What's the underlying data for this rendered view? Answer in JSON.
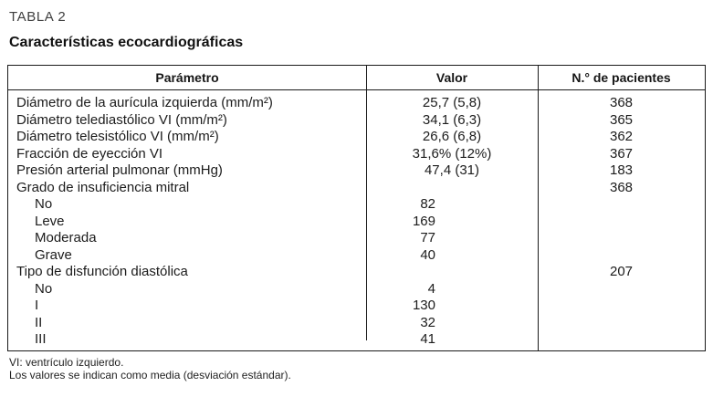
{
  "page": {
    "kicker": "TABLA 2",
    "title": "Características ecocardiográficas"
  },
  "table": {
    "headers": {
      "parametro": "Parámetro",
      "valor": "Valor",
      "pacientes": "N.° de pacientes"
    },
    "rows": [
      {
        "param": "Diámetro de la aurícula izquierda (mm/m²)",
        "indent": false,
        "valor": "25,7 (5,8)",
        "valor_align": "center",
        "pacientes": "368"
      },
      {
        "param": "Diámetro telediastólico VI (mm/m²)",
        "indent": false,
        "valor": "34,1 (6,3)",
        "valor_align": "center",
        "pacientes": "365"
      },
      {
        "param": "Diámetro telesistólico VI (mm/m²)",
        "indent": false,
        "valor": "26,6 (6,8)",
        "valor_align": "center",
        "pacientes": "362"
      },
      {
        "param": "Fracción de eyección VI",
        "indent": false,
        "valor": "31,6% (12%)",
        "valor_align": "center",
        "pacientes": "367"
      },
      {
        "param": "Presión arterial pulmonar (mmHg)",
        "indent": false,
        "valor": "47,4 (31)",
        "valor_align": "center",
        "pacientes": "183"
      },
      {
        "param": "Grado de insuficiencia mitral",
        "indent": false,
        "valor": "",
        "valor_align": "center",
        "pacientes": "368"
      },
      {
        "param": "No",
        "indent": true,
        "valor": "82",
        "valor_align": "right",
        "pacientes": ""
      },
      {
        "param": "Leve",
        "indent": true,
        "valor": "169",
        "valor_align": "right",
        "pacientes": ""
      },
      {
        "param": "Moderada",
        "indent": true,
        "valor": "77",
        "valor_align": "right",
        "pacientes": ""
      },
      {
        "param": "Grave",
        "indent": true,
        "valor": "40",
        "valor_align": "right",
        "pacientes": ""
      },
      {
        "param": "Tipo de disfunción diastólica",
        "indent": false,
        "valor": "",
        "valor_align": "center",
        "pacientes": "207"
      },
      {
        "param": "No",
        "indent": true,
        "valor": "4",
        "valor_align": "right",
        "pacientes": ""
      },
      {
        "param": "I",
        "indent": true,
        "valor": "130",
        "valor_align": "right",
        "pacientes": ""
      },
      {
        "param": "II",
        "indent": true,
        "valor": "32",
        "valor_align": "right",
        "pacientes": ""
      },
      {
        "param": "III",
        "indent": true,
        "valor": "41",
        "valor_align": "right",
        "pacientes": ""
      }
    ]
  },
  "footnotes": {
    "line1": "VI: ventrículo izquierdo.",
    "line2": "Los valores se indican como media (desviación estándar)."
  }
}
